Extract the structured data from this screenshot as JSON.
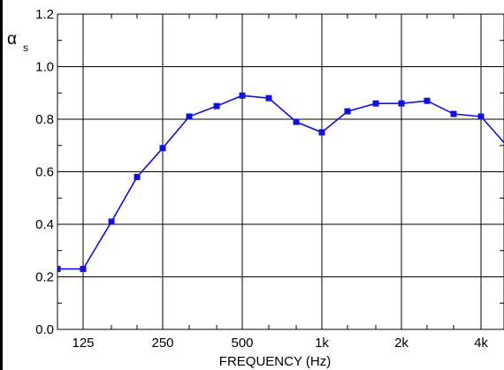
{
  "chart_data": {
    "type": "line",
    "ylabel_symbol": "α",
    "ylabel_subscript": "s",
    "xlabel": "FREQUENCY (Hz)",
    "x": [
      100,
      125,
      160,
      200,
      250,
      315,
      400,
      500,
      630,
      800,
      1000,
      1250,
      1600,
      2000,
      2500,
      3150,
      4000,
      5000
    ],
    "xticks": [
      {
        "value": 125,
        "label": "125"
      },
      {
        "value": 250,
        "label": "250"
      },
      {
        "value": 500,
        "label": "500"
      },
      {
        "value": 1000,
        "label": "1k"
      },
      {
        "value": 2000,
        "label": "2k"
      },
      {
        "value": 4000,
        "label": "4k"
      }
    ],
    "yticks": [
      {
        "value": 0.0,
        "label": "0.0"
      },
      {
        "value": 0.2,
        "label": "0.2"
      },
      {
        "value": 0.4,
        "label": "0.4"
      },
      {
        "value": 0.6,
        "label": "0.6"
      },
      {
        "value": 0.8,
        "label": "0.8"
      },
      {
        "value": 1.0,
        "label": "1.0"
      },
      {
        "value": 1.2,
        "label": "1.2"
      }
    ],
    "ylim": [
      0,
      1.2
    ],
    "xscale": "log",
    "grid": true,
    "series": [
      {
        "color": "#1010e0",
        "marker": "square",
        "values": [
          0.23,
          0.23,
          0.41,
          0.58,
          0.69,
          0.81,
          0.85,
          0.89,
          0.88,
          0.79,
          0.75,
          0.83,
          0.86,
          0.86,
          0.87,
          0.82,
          0.81,
          0.7
        ]
      }
    ]
  }
}
